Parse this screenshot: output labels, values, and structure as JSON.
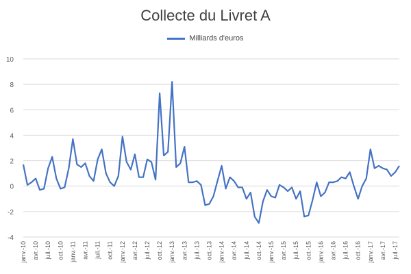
{
  "chart_data": {
    "type": "line",
    "title": "Collecte du Livret A",
    "legend_position": "top-center",
    "grid": true,
    "ylim": [
      -4,
      10
    ],
    "yticks": [
      -4,
      -2,
      0,
      2,
      4,
      6,
      8,
      10
    ],
    "x_tick_labels": [
      "janv.-10",
      "avr.-10",
      "juil.-10",
      "oct.-10",
      "janv.-11",
      "avr.-11",
      "juil.-11",
      "oct.-11",
      "janv.-12",
      "avr.-12",
      "juil.-12",
      "oct.-12",
      "janv.-13",
      "avr.-13",
      "juil.-13",
      "oct.-13",
      "janv.-14",
      "avr.-14",
      "juil.-14",
      "oct.-14",
      "janv.-15",
      "avr.-15",
      "juil.-15",
      "oct.-15",
      "janv.-16",
      "avr.-16",
      "juil.-16",
      "oct.-16",
      "janv.-17",
      "avr.-17",
      "juil.-17"
    ],
    "colors": {
      "series": "#4472C4",
      "grid": "#d9d9d9"
    },
    "series": [
      {
        "name": "Milliards d'euros",
        "values": [
          1.7,
          0.1,
          0.3,
          0.6,
          -0.3,
          -0.2,
          1.4,
          2.3,
          0.6,
          -0.2,
          -0.1,
          1.4,
          3.7,
          1.7,
          1.5,
          1.8,
          0.8,
          0.4,
          2.1,
          2.9,
          1.0,
          0.3,
          0.0,
          0.8,
          3.9,
          1.9,
          1.3,
          2.5,
          0.7,
          0.7,
          2.1,
          1.9,
          0.5,
          7.3,
          2.4,
          2.7,
          8.2,
          1.5,
          1.8,
          3.1,
          0.3,
          0.3,
          0.4,
          0.1,
          -1.5,
          -1.4,
          -0.8,
          0.4,
          1.6,
          -0.2,
          0.7,
          0.4,
          -0.1,
          -0.1,
          -1.0,
          -0.5,
          -2.4,
          -2.9,
          -1.2,
          -0.3,
          -0.8,
          -0.9,
          0.1,
          -0.1,
          -0.4,
          -0.1,
          -1.0,
          -0.4,
          -2.4,
          -2.3,
          -1.1,
          0.3,
          -0.8,
          -0.5,
          0.3,
          0.3,
          0.4,
          0.7,
          0.6,
          1.1,
          0.0,
          -1.0,
          0.0,
          0.6,
          2.9,
          1.4,
          1.6,
          1.4,
          1.3,
          0.8,
          1.1,
          1.6
        ]
      }
    ]
  }
}
